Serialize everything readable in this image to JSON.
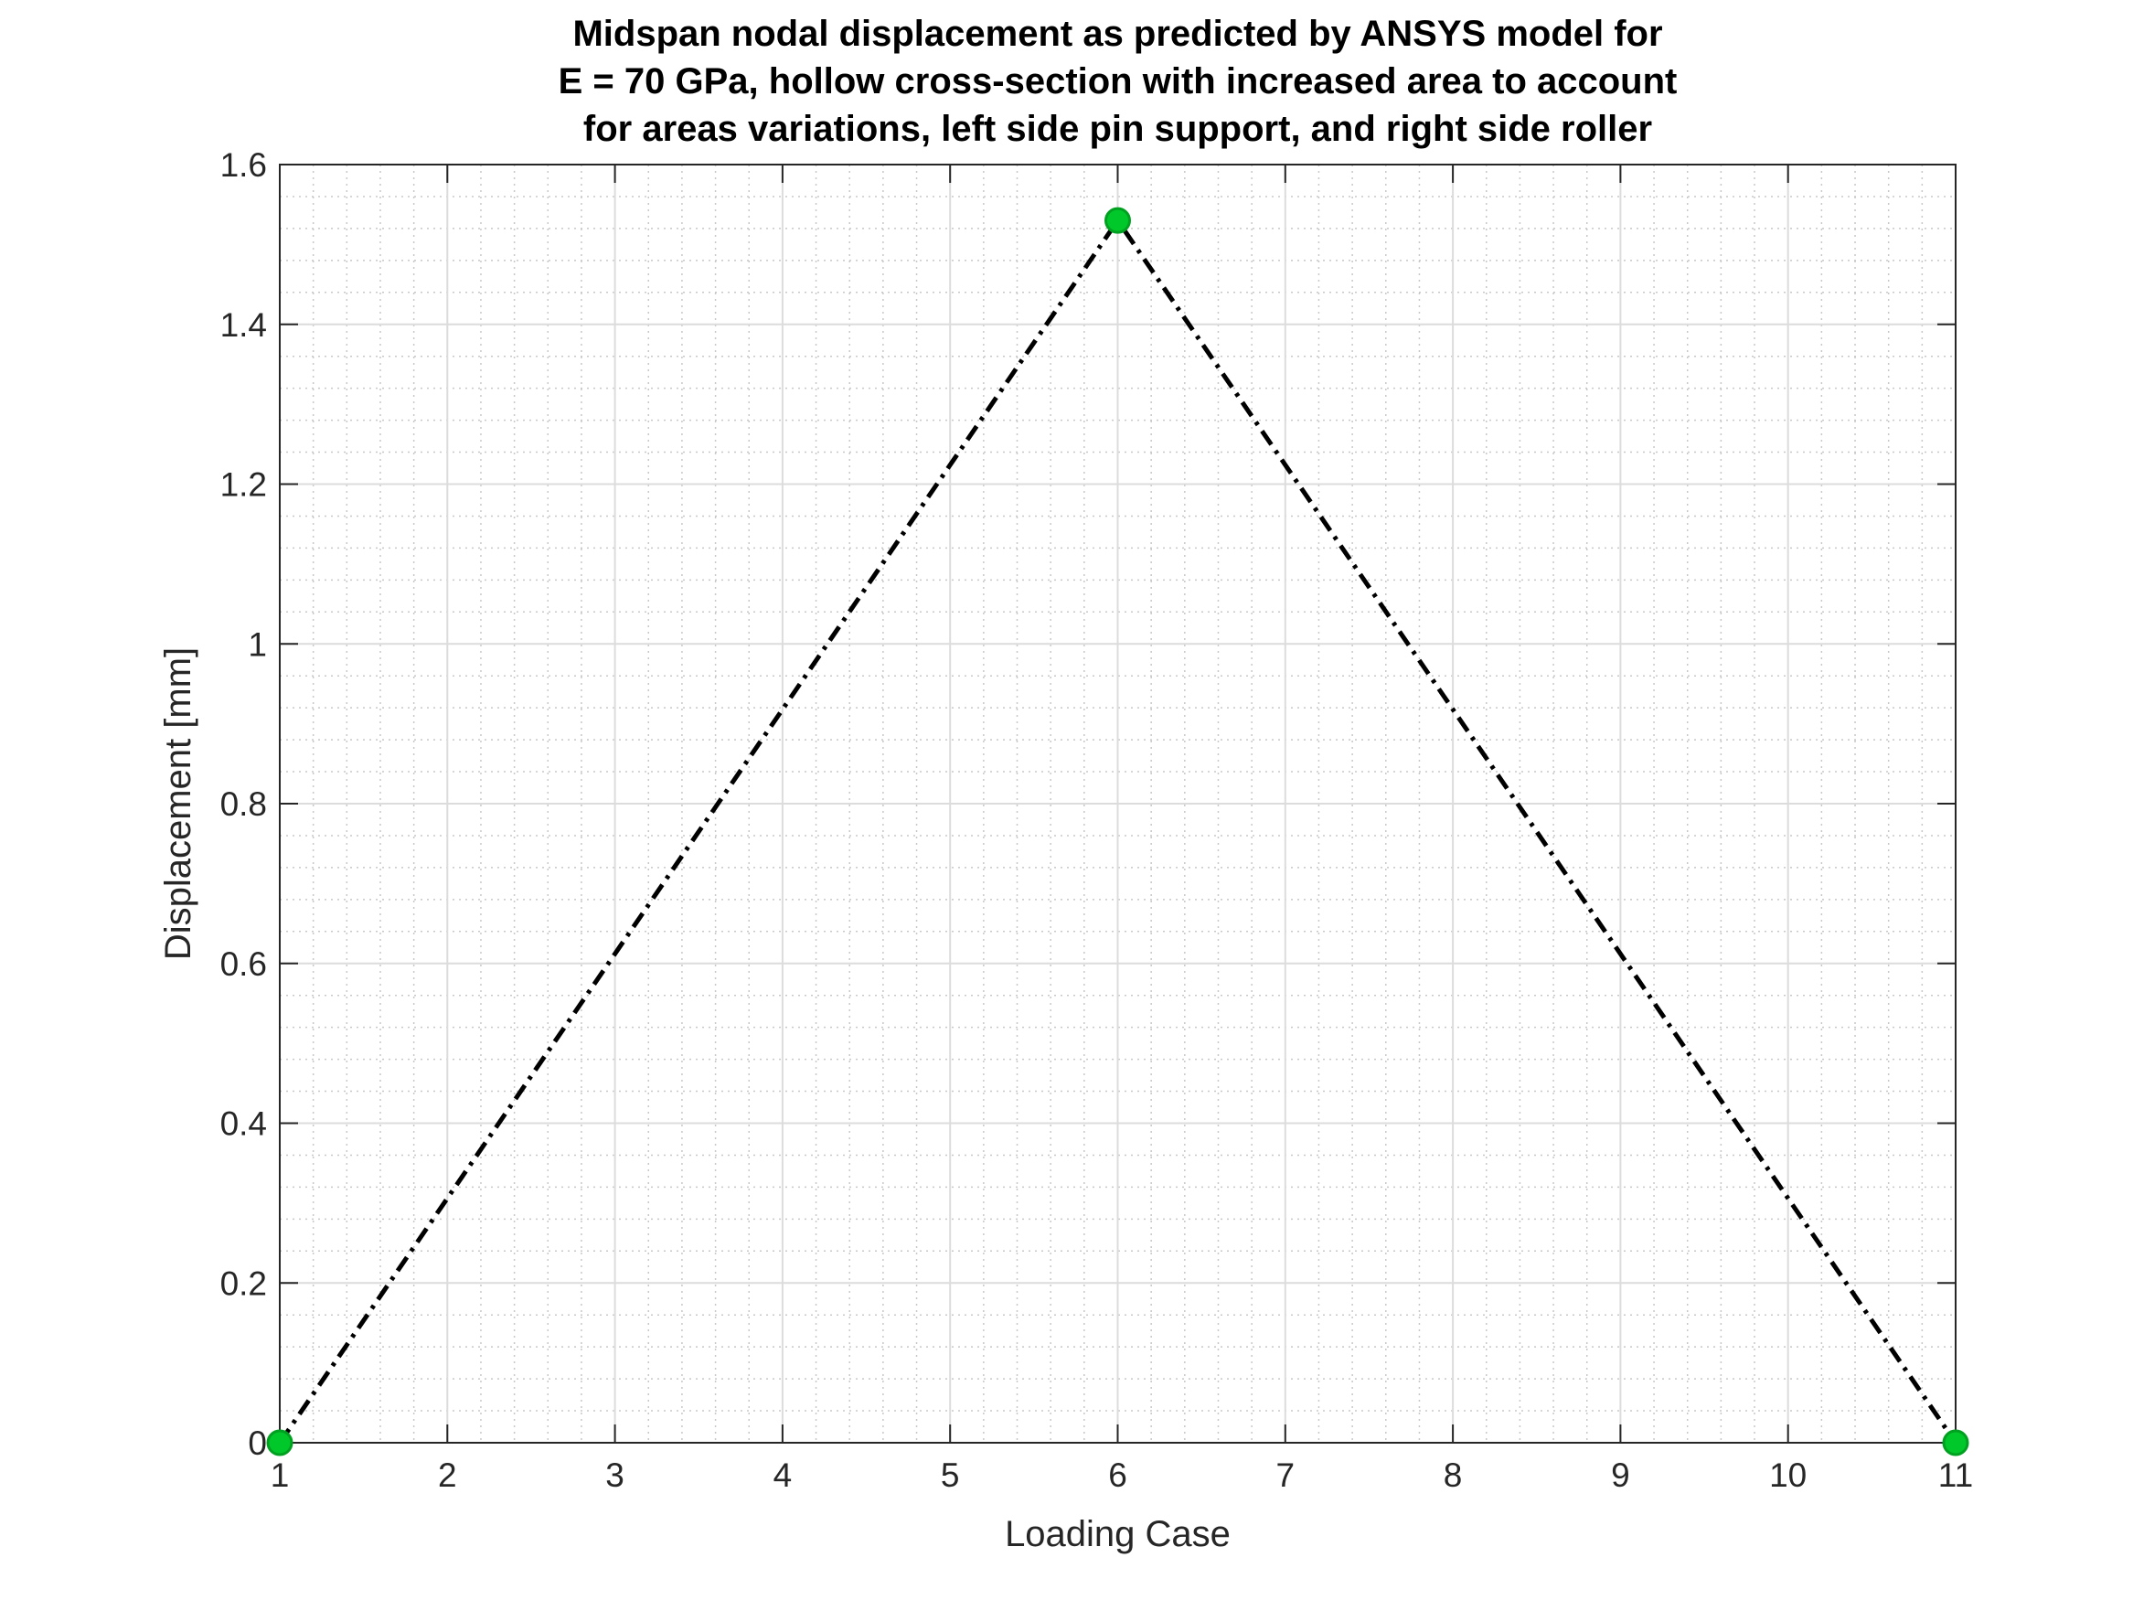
{
  "chart_data": {
    "type": "line",
    "title": [
      "Midspan nodal displacement as predicted by ANSYS model for",
      "E = 70 GPa, hollow cross-section with increased area to account",
      "for areas variations, left side pin support, and right side roller"
    ],
    "xlabel": "Loading Case",
    "ylabel": "Displacement [mm]",
    "xlim": [
      1,
      11
    ],
    "ylim": [
      0,
      1.6
    ],
    "xticks": [
      1,
      2,
      3,
      4,
      5,
      6,
      7,
      8,
      9,
      10,
      11
    ],
    "xtick_labels": [
      "1",
      "2",
      "3",
      "4",
      "5",
      "6",
      "7",
      "8",
      "9",
      "10",
      "11"
    ],
    "yticks": [
      0,
      0.2,
      0.4,
      0.6,
      0.8,
      1.0,
      1.2,
      1.4,
      1.6
    ],
    "ytick_labels": [
      "0",
      "0.2",
      "0.4",
      "0.6",
      "0.8",
      "1",
      "1.2",
      "1.4",
      "1.6"
    ],
    "grid": true,
    "minor_grid": true,
    "legend": "none",
    "series": [
      {
        "x": [
          1,
          6,
          11
        ],
        "y": [
          0,
          1.53,
          0
        ],
        "line_color": "#000000",
        "line_style": "dash-dot",
        "marker": "circle",
        "marker_color": "#00c82a"
      }
    ]
  }
}
